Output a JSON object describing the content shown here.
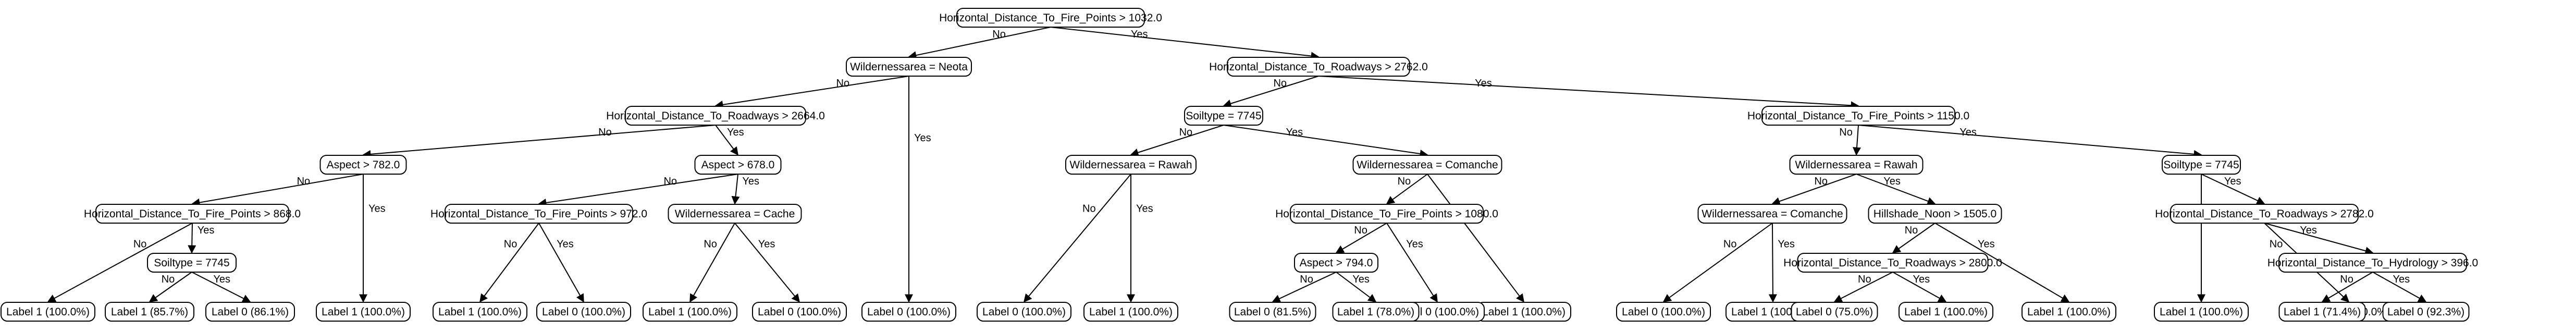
{
  "diagram": {
    "type": "decision-tree",
    "nodes": [
      {
        "id": "n0",
        "label": "Horizontal_Distance_To_Fire_Points > 1032.0"
      },
      {
        "id": "n1",
        "label": "Wildernessarea = Neota"
      },
      {
        "id": "n2",
        "label": "Horizontal_Distance_To_Roadways > 2762.0"
      },
      {
        "id": "n3",
        "label": "Horizontal_Distance_To_Roadways > 2664.0"
      },
      {
        "id": "n4",
        "label": "Label 0 (100.0%)"
      },
      {
        "id": "n5",
        "label": "Soiltype = 7745"
      },
      {
        "id": "n6",
        "label": "Horizontal_Distance_To_Fire_Points > 1150.0"
      },
      {
        "id": "n7",
        "label": "Aspect > 782.0"
      },
      {
        "id": "n8",
        "label": "Aspect > 678.0"
      },
      {
        "id": "n9",
        "label": "Wildernessarea = Rawah"
      },
      {
        "id": "n10",
        "label": "Wildernessarea = Comanche"
      },
      {
        "id": "n11",
        "label": "Wildernessarea = Rawah"
      },
      {
        "id": "n12",
        "label": "Soiltype = 7745"
      },
      {
        "id": "n13",
        "label": "Horizontal_Distance_To_Fire_Points > 868.0"
      },
      {
        "id": "n14",
        "label": "Label 1 (100.0%)"
      },
      {
        "id": "n15",
        "label": "Horizontal_Distance_To_Fire_Points > 972.0"
      },
      {
        "id": "n16",
        "label": "Wildernessarea = Cache"
      },
      {
        "id": "n17",
        "label": "Label 0 (100.0%)"
      },
      {
        "id": "n18",
        "label": "Label 1 (100.0%)"
      },
      {
        "id": "n19",
        "label": "Horizontal_Distance_To_Fire_Points > 1080.0"
      },
      {
        "id": "n20",
        "label": "Label 1 (100.0%)"
      },
      {
        "id": "n21",
        "label": "Wildernessarea = Comanche"
      },
      {
        "id": "n22",
        "label": "Hillshade_Noon > 1505.0"
      },
      {
        "id": "n23",
        "label": "Label 1 (100.0%)"
      },
      {
        "id": "n24",
        "label": "Horizontal_Distance_To_Roadways > 2782.0"
      },
      {
        "id": "n25",
        "label": "Label 1 (100.0%)"
      },
      {
        "id": "n26",
        "label": "Soiltype = 7745"
      },
      {
        "id": "n27",
        "label": "Label 1 (100.0%)"
      },
      {
        "id": "n28",
        "label": "Label 0 (100.0%)"
      },
      {
        "id": "n29",
        "label": "Label 1 (100.0%)"
      },
      {
        "id": "n30",
        "label": "Label 0 (100.0%)"
      },
      {
        "id": "n31",
        "label": "Aspect > 794.0"
      },
      {
        "id": "n32",
        "label": "Label 0 (100.0%)"
      },
      {
        "id": "n33",
        "label": "Label 0 (100.0%)"
      },
      {
        "id": "n34",
        "label": "Label 1 (100.0%)"
      },
      {
        "id": "n35",
        "label": "Horizontal_Distance_To_Roadways > 2800.0"
      },
      {
        "id": "n36",
        "label": "Label 1 (100.0%)"
      },
      {
        "id": "n37",
        "label": "Label 0 (100.0%)"
      },
      {
        "id": "n38",
        "label": "Horizontal_Distance_To_Hydrology > 396.0"
      },
      {
        "id": "n39",
        "label": "Label 1 (85.7%)"
      },
      {
        "id": "n40",
        "label": "Label 0 (86.1%)"
      },
      {
        "id": "n41",
        "label": "Label 0 (81.5%)"
      },
      {
        "id": "n42",
        "label": "Label 1 (78.0%)"
      },
      {
        "id": "n43",
        "label": "Label 0 (75.0%)"
      },
      {
        "id": "n44",
        "label": "Label 1 (100.0%)"
      },
      {
        "id": "n45",
        "label": "Label 1 (71.4%)"
      },
      {
        "id": "n46",
        "label": "Label 0 (92.3%)"
      }
    ],
    "edges": [
      {
        "from": "n0",
        "to": "n1",
        "label": "No"
      },
      {
        "from": "n0",
        "to": "n2",
        "label": "Yes"
      },
      {
        "from": "n1",
        "to": "n3",
        "label": "No"
      },
      {
        "from": "n1",
        "to": "n4",
        "label": "Yes"
      },
      {
        "from": "n2",
        "to": "n5",
        "label": "No"
      },
      {
        "from": "n2",
        "to": "n6",
        "label": "Yes"
      },
      {
        "from": "n3",
        "to": "n7",
        "label": "No"
      },
      {
        "from": "n3",
        "to": "n8",
        "label": "Yes"
      },
      {
        "from": "n5",
        "to": "n9",
        "label": "No"
      },
      {
        "from": "n5",
        "to": "n10",
        "label": "Yes"
      },
      {
        "from": "n6",
        "to": "n11",
        "label": "No"
      },
      {
        "from": "n6",
        "to": "n12",
        "label": "Yes"
      },
      {
        "from": "n7",
        "to": "n13",
        "label": "No"
      },
      {
        "from": "n7",
        "to": "n14",
        "label": "Yes"
      },
      {
        "from": "n8",
        "to": "n15",
        "label": "No"
      },
      {
        "from": "n8",
        "to": "n16",
        "label": "Yes"
      },
      {
        "from": "n9",
        "to": "n17",
        "label": "No"
      },
      {
        "from": "n9",
        "to": "n18",
        "label": "Yes"
      },
      {
        "from": "n10",
        "to": "n19",
        "label": "No"
      },
      {
        "from": "n10",
        "to": "n20",
        "label": "Yes"
      },
      {
        "from": "n11",
        "to": "n21",
        "label": "No"
      },
      {
        "from": "n11",
        "to": "n22",
        "label": "Yes"
      },
      {
        "from": "n12",
        "to": "n23",
        "label": "No"
      },
      {
        "from": "n12",
        "to": "n24",
        "label": "Yes"
      },
      {
        "from": "n13",
        "to": "n25",
        "label": "No"
      },
      {
        "from": "n13",
        "to": "n26",
        "label": "Yes"
      },
      {
        "from": "n15",
        "to": "n27",
        "label": "No"
      },
      {
        "from": "n15",
        "to": "n28",
        "label": "Yes"
      },
      {
        "from": "n16",
        "to": "n29",
        "label": "No"
      },
      {
        "from": "n16",
        "to": "n30",
        "label": "Yes"
      },
      {
        "from": "n19",
        "to": "n31",
        "label": "No"
      },
      {
        "from": "n19",
        "to": "n32",
        "label": "Yes"
      },
      {
        "from": "n21",
        "to": "n33",
        "label": "No"
      },
      {
        "from": "n21",
        "to": "n34",
        "label": "Yes"
      },
      {
        "from": "n22",
        "to": "n35",
        "label": "No"
      },
      {
        "from": "n22",
        "to": "n36",
        "label": "Yes"
      },
      {
        "from": "n24",
        "to": "n37",
        "label": "No"
      },
      {
        "from": "n24",
        "to": "n38",
        "label": "Yes"
      },
      {
        "from": "n26",
        "to": "n39",
        "label": "No"
      },
      {
        "from": "n26",
        "to": "n40",
        "label": "Yes"
      },
      {
        "from": "n31",
        "to": "n41",
        "label": "No"
      },
      {
        "from": "n31",
        "to": "n42",
        "label": "Yes"
      },
      {
        "from": "n35",
        "to": "n43",
        "label": "No"
      },
      {
        "from": "n35",
        "to": "n44",
        "label": "Yes"
      },
      {
        "from": "n38",
        "to": "n45",
        "label": "No"
      },
      {
        "from": "n38",
        "to": "n46",
        "label": "Yes"
      }
    ]
  }
}
